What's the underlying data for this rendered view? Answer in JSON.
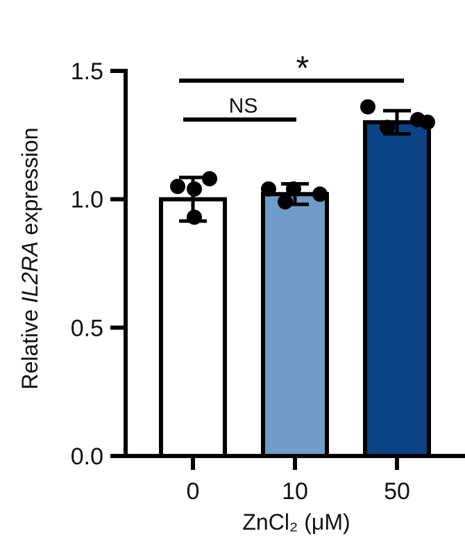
{
  "chart_data": {
    "type": "bar",
    "categories": [
      "0",
      "10",
      "50"
    ],
    "values": [
      1.0,
      1.02,
      1.3
    ],
    "errors": [
      0.085,
      0.04,
      0.045
    ],
    "points": [
      [
        1.05,
        1.08,
        1.04,
        0.93
      ],
      [
        1.04,
        1.04,
        1.02,
        0.99
      ],
      [
        1.36,
        1.28,
        1.31,
        1.3
      ]
    ],
    "bar_colors": [
      "#ffffff",
      "#6f9cc9",
      "#0b4385"
    ],
    "ylim": [
      0,
      1.5
    ],
    "yticks": [
      "0.0",
      "0.5",
      "1.0",
      "1.5"
    ],
    "ylabel": {
      "prefix": "Relative ",
      "italic": "IL2RA",
      "suffix": " expression"
    },
    "xlabel": "ZnCl₂ (μM)",
    "comparisons": [
      {
        "from": 0,
        "to": 1,
        "label": "NS"
      },
      {
        "from": 0,
        "to": 2,
        "label": "*"
      }
    ]
  }
}
